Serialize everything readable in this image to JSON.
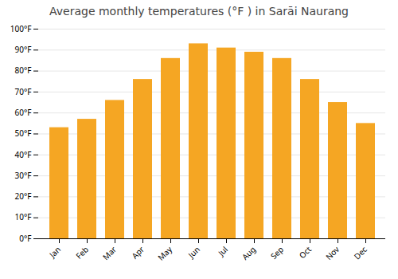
{
  "chart_data": {
    "type": "bar",
    "title": "Average monthly temperatures (°F ) in Sarāi Naurang",
    "categories": [
      "Jan",
      "Feb",
      "Mar",
      "Apr",
      "May",
      "Jun",
      "Jul",
      "Aug",
      "Sep",
      "Oct",
      "Nov",
      "Dec"
    ],
    "values": [
      53,
      57,
      66,
      76,
      86,
      93,
      91,
      89,
      86,
      76,
      65,
      55
    ],
    "color": "#F5A623",
    "ylim": [
      0,
      100
    ],
    "yticks": [
      {
        "value": 0,
        "label": "0°F"
      },
      {
        "value": 10,
        "label": "10°F"
      },
      {
        "value": 20,
        "label": "20°F"
      },
      {
        "value": 30,
        "label": "30°F"
      },
      {
        "value": 40,
        "label": "40°F"
      },
      {
        "value": 50,
        "label": "50°F"
      },
      {
        "value": 60,
        "label": "60°F"
      },
      {
        "value": 70,
        "label": "70°F"
      },
      {
        "value": 80,
        "label": "80°F"
      },
      {
        "value": 90,
        "label": "90°F"
      },
      {
        "value": 100,
        "label": "100°F"
      }
    ],
    "grid": true
  }
}
